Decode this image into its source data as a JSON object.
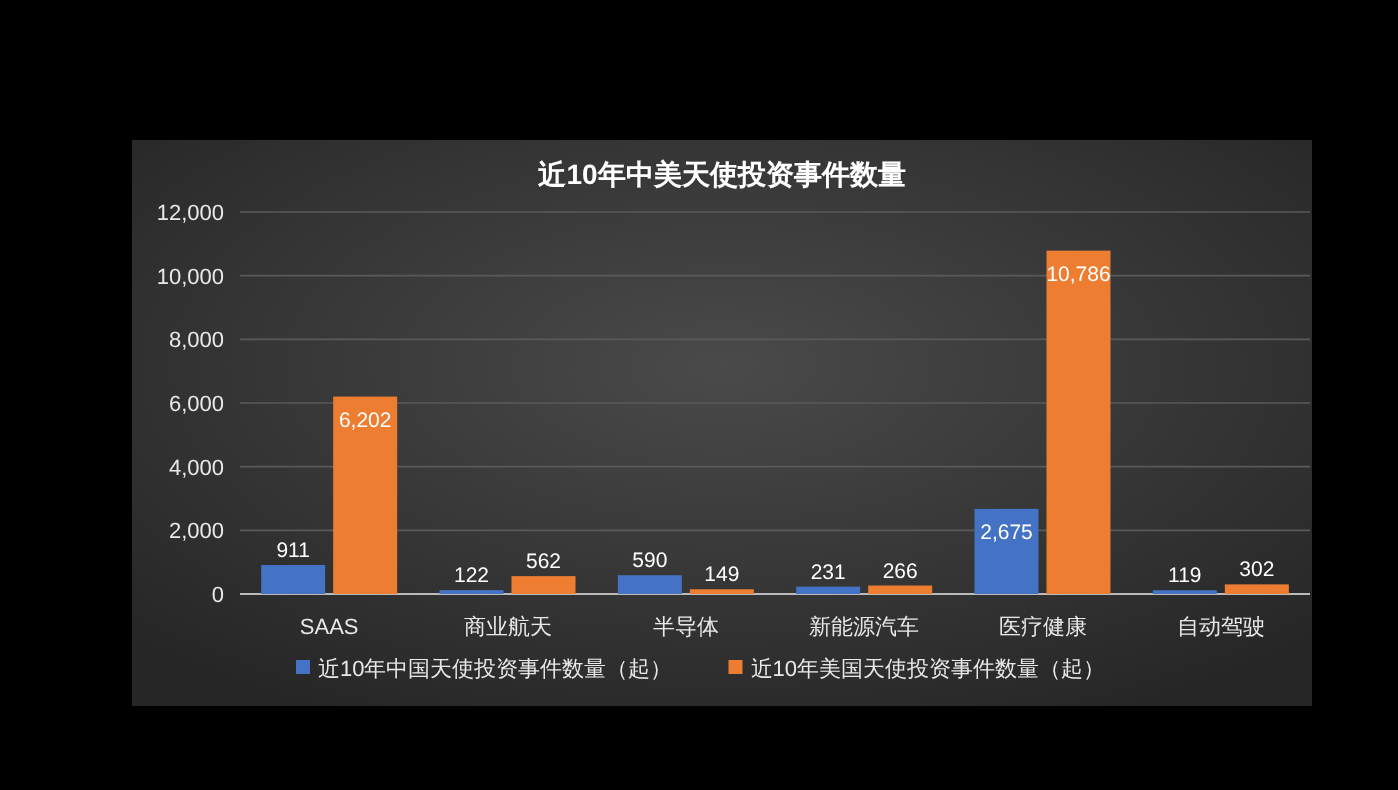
{
  "chart_data": {
    "type": "bar",
    "title": "近10年中美天使投资事件数量",
    "categories": [
      "SAAS",
      "商业航天",
      "半导体",
      "新能源汽车",
      "医疗健康",
      "自动驾驶"
    ],
    "series": [
      {
        "name": "近10年中国天使投资事件数量（起）",
        "color": "#4472c4",
        "values": [
          911,
          122,
          590,
          231,
          2675,
          119
        ],
        "value_labels": [
          "911",
          "122",
          "590",
          "231",
          "2,675",
          "119"
        ]
      },
      {
        "name": "近10年美国天使投资事件数量（起）",
        "color": "#ed7d31",
        "values": [
          6202,
          562,
          149,
          266,
          10786,
          302
        ],
        "value_labels": [
          "6,202",
          "562",
          "149",
          "266",
          "10,786",
          "302"
        ]
      }
    ],
    "ylim": [
      0,
      12000
    ],
    "yticks": [
      {
        "value": 0,
        "label": "0"
      },
      {
        "value": 2000,
        "label": "2,000"
      },
      {
        "value": 4000,
        "label": "4,000"
      },
      {
        "value": 6000,
        "label": "6,000"
      },
      {
        "value": 8000,
        "label": "8,000"
      },
      {
        "value": 10000,
        "label": "10,000"
      },
      {
        "value": 12000,
        "label": "12,000"
      }
    ],
    "grid": "y",
    "legend": "bottom"
  }
}
